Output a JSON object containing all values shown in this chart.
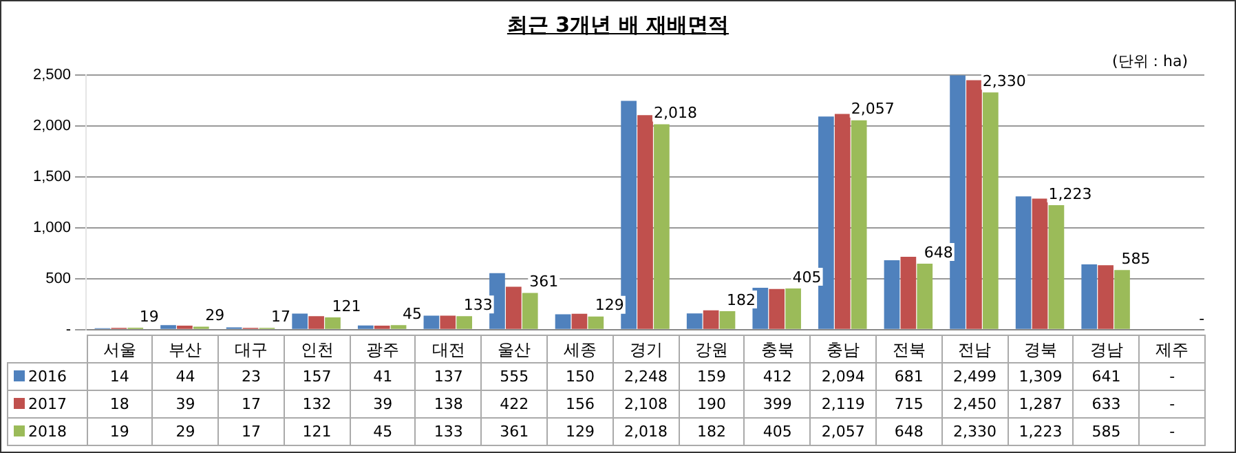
{
  "chart_data": {
    "type": "bar",
    "title": "최근 3개년 배 재배면적",
    "annotations": [
      "(단위 : ha)"
    ],
    "categories": [
      "서울",
      "부산",
      "대구",
      "인천",
      "광주",
      "대전",
      "울산",
      "세종",
      "경기",
      "강원",
      "충북",
      "충남",
      "전북",
      "전남",
      "경북",
      "경남",
      "제주"
    ],
    "series": [
      {
        "name": "2016",
        "color": "#4f81bd",
        "values": [
          14,
          44,
          23,
          157,
          41,
          137,
          555,
          150,
          2248,
          159,
          412,
          2094,
          681,
          2499,
          1309,
          641,
          null
        ],
        "value_labels": [
          "14",
          "44",
          "23",
          "157",
          "41",
          "137",
          "555",
          "150",
          "2,248",
          "159",
          "412",
          "2,094",
          "681",
          "2,499",
          "1,309",
          "641",
          "-"
        ]
      },
      {
        "name": "2017",
        "color": "#c0504d",
        "values": [
          18,
          39,
          17,
          132,
          39,
          138,
          422,
          156,
          2108,
          190,
          399,
          2119,
          715,
          2450,
          1287,
          633,
          null
        ],
        "value_labels": [
          "18",
          "39",
          "17",
          "132",
          "39",
          "138",
          "422",
          "156",
          "2,108",
          "190",
          "399",
          "2,119",
          "715",
          "2,450",
          "1,287",
          "633",
          "-"
        ]
      },
      {
        "name": "2018",
        "color": "#9bbb59",
        "values": [
          19,
          29,
          17,
          121,
          45,
          133,
          361,
          129,
          2018,
          182,
          405,
          2057,
          648,
          2330,
          1223,
          585,
          null
        ],
        "value_labels": [
          "19",
          "29",
          "17",
          "121",
          "45",
          "133",
          "361",
          "129",
          "2,018",
          "182",
          "405",
          "2,057",
          "648",
          "2,330",
          "1,223",
          "585",
          "-"
        ],
        "data_labels": true
      }
    ],
    "ylim": [
      0,
      2500
    ],
    "yticks": [
      {
        "value": 0,
        "label": "-"
      },
      500,
      {
        "value": 1000,
        "label": "1,000"
      },
      {
        "value": 1500,
        "label": "1,500"
      },
      {
        "value": 2000,
        "label": "2,000"
      },
      {
        "value": 2500,
        "label": "2,500"
      }
    ],
    "grid": "y",
    "legend": "bottom left"
  }
}
